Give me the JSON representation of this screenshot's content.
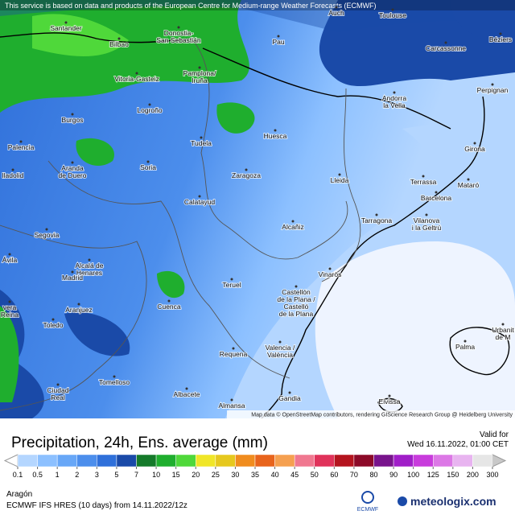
{
  "notice": "This service is based on data and products of the European Centre for Medium-range Weather Forecasts (ECMWF)",
  "cities": [
    {
      "label": [
        "Auch"
      ]
    },
    {
      "label": [
        "Toulouse"
      ]
    },
    {
      "label": [
        "Béziers"
      ]
    },
    {
      "label": [
        "Santander"
      ]
    },
    {
      "label": [
        "Donostia-",
        "San Sebastián"
      ]
    },
    {
      "label": [
        "Bilbao"
      ]
    },
    {
      "label": [
        "Pau"
      ]
    },
    {
      "label": [
        "Carcassonne"
      ]
    },
    {
      "label": [
        "Vitoria-Gasteiz"
      ]
    },
    {
      "label": [
        "Pamplona/",
        "Iruña"
      ]
    },
    {
      "label": [
        "Perpignan"
      ]
    },
    {
      "label": [
        "Andorra",
        "la Vella"
      ]
    },
    {
      "label": [
        "Logroño"
      ]
    },
    {
      "label": [
        "Burgos"
      ]
    },
    {
      "label": [
        "Huesca"
      ]
    },
    {
      "label": [
        "Tudela"
      ]
    },
    {
      "label": [
        "Palencia"
      ]
    },
    {
      "label": [
        "Girona"
      ]
    },
    {
      "label": [
        "Aranda",
        "de Duero"
      ]
    },
    {
      "label": [
        "Soria"
      ]
    },
    {
      "label": [
        "Zaragoza"
      ]
    },
    {
      "label": [
        "lladolid"
      ]
    },
    {
      "label": [
        "Lleida"
      ]
    },
    {
      "label": [
        "Terrassa"
      ]
    },
    {
      "label": [
        "Mataró"
      ]
    },
    {
      "label": [
        "Barcelona"
      ]
    },
    {
      "label": [
        "Calatayud"
      ]
    },
    {
      "label": [
        "Tarragona"
      ]
    },
    {
      "label": [
        "Vilanova",
        "i la Geltrú"
      ]
    },
    {
      "label": [
        "Alcañiz"
      ]
    },
    {
      "label": [
        "Segovia"
      ]
    },
    {
      "label": [
        "Ávila"
      ]
    },
    {
      "label": [
        "Alcalá de",
        "Henares"
      ]
    },
    {
      "label": [
        "Madrid"
      ]
    },
    {
      "label": [
        "Vinaròs"
      ]
    },
    {
      "label": [
        "Castellón",
        "de la Plana /",
        "Castelló",
        "de la Plana"
      ]
    },
    {
      "label": [
        "Teruel"
      ]
    },
    {
      "label": [
        "Cuenca"
      ]
    },
    {
      "label": [
        "vera",
        "Reina"
      ]
    },
    {
      "label": [
        "Aranjuez"
      ]
    },
    {
      "label": [
        "Toledo"
      ]
    },
    {
      "label": [
        "Urbanit",
        "de M"
      ]
    },
    {
      "label": [
        "Palma"
      ]
    },
    {
      "label": [
        "Valencia /",
        "València"
      ]
    },
    {
      "label": [
        "Requena"
      ]
    },
    {
      "label": [
        "Tomelloso"
      ]
    },
    {
      "label": [
        "Ciudad",
        "Real"
      ]
    },
    {
      "label": [
        "Albacete"
      ]
    },
    {
      "label": [
        "Almansa"
      ]
    },
    {
      "label": [
        "Gandia"
      ]
    },
    {
      "label": [
        "Eivissa"
      ]
    }
  ],
  "attribution": "Map data © OpenStreetMap contributors, rendering GIScience Research Group @ Heidelberg University",
  "legend": {
    "title": "Precipitation, 24h, Ens. average (mm)",
    "valid_label": "Valid for",
    "valid_time": "Wed 16.11.2022, 01:00 CET",
    "ticks": [
      0.1,
      0.5,
      1,
      2,
      3,
      5,
      7,
      10,
      15,
      20,
      25,
      30,
      35,
      40,
      45,
      50,
      60,
      70,
      80,
      90,
      100,
      125,
      150,
      200,
      300
    ],
    "colors": [
      "#b4d6ff",
      "#8cc0ff",
      "#68a7f7",
      "#4c8eec",
      "#2f70da",
      "#1a4aa8",
      "#157a2a",
      "#1fae2e",
      "#4fd83a",
      "#f0e628",
      "#e6c81e",
      "#f08c1e",
      "#e8641c",
      "#f5a050",
      "#f07890",
      "#e0325a",
      "#b4141e",
      "#8c0a28",
      "#78148c",
      "#a01ec8",
      "#c83cdc",
      "#dc78e6",
      "#e8b4f0",
      "#e6e6e6"
    ]
  },
  "footer": {
    "region": "Aragón",
    "model": "ECMWF IFS HRES (10 days) from 14.11.2022/12z",
    "logo1": "ECMWF",
    "logo2": "meteologix.com"
  }
}
